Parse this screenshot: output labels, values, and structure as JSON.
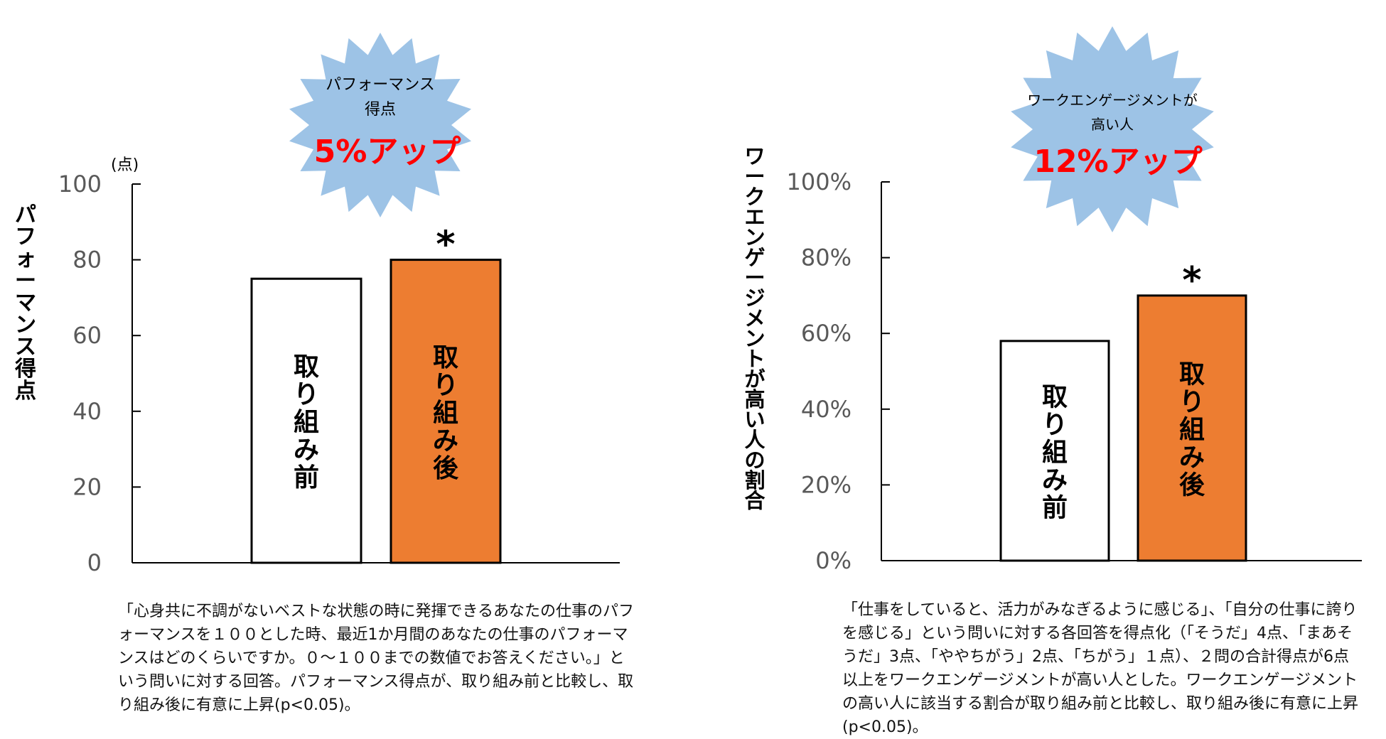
{
  "chart_data": [
    {
      "type": "bar",
      "categories": [
        "取り組み前",
        "取り組み後"
      ],
      "values": [
        75,
        80
      ],
      "ylabel": "パフォーマンス得点",
      "unit": "(点)",
      "ylim": [
        0,
        100
      ],
      "yticks": [
        "0",
        "20",
        "40",
        "60",
        "80",
        "100"
      ],
      "significance": "*",
      "bar_colors": [
        "#ffffff",
        "#ed7d31"
      ],
      "burst": {
        "lines": [
          "パフォーマンス",
          "得点"
        ],
        "highlight": "5%アップ",
        "fill": "#9dc3e6",
        "highlight_color": "#ff0000"
      },
      "note": "「心身共に不調がないベストな状態の時に発揮できるあなたの仕事のパフォーマンスを１００とした時、最近1か月間のあなたの仕事のパフォーマンスはどのくらいですか。０～１００までの数値でお答えください。」という問いに対する回答。パフォーマンス得点が、取り組み前と比較し、取り組み後に有意に上昇(p<0.05)。"
    },
    {
      "type": "bar",
      "categories": [
        "取り組み前",
        "取り組み後"
      ],
      "values": [
        58,
        70
      ],
      "ylabel": "ワークエンゲージメントが高い人の割合",
      "ylim": [
        0,
        100
      ],
      "yticks": [
        "0%",
        "20%",
        "40%",
        "60%",
        "80%",
        "100%"
      ],
      "significance": "*",
      "bar_colors": [
        "#ffffff",
        "#ed7d31"
      ],
      "burst": {
        "lines": [
          "ワークエンゲージメントが",
          "高い人"
        ],
        "highlight": "12%アップ",
        "fill": "#9dc3e6",
        "highlight_color": "#ff0000"
      },
      "note": "「仕事をしていると、活力がみなぎるように感じる」、「自分の仕事に誇りを感じる」という問いに対する各回答を得点化（「そうだ」4点、「まあそうだ」3点、「ややちがう」2点、「ちがう」１点）、２問の合計得点が6点以上をワークエンゲージメントが高い人とした。ワークエンゲージメントの高い人に該当する割合が取り組み前と比較し、取り組み後に有意に上昇(p<0.05)。"
    }
  ]
}
